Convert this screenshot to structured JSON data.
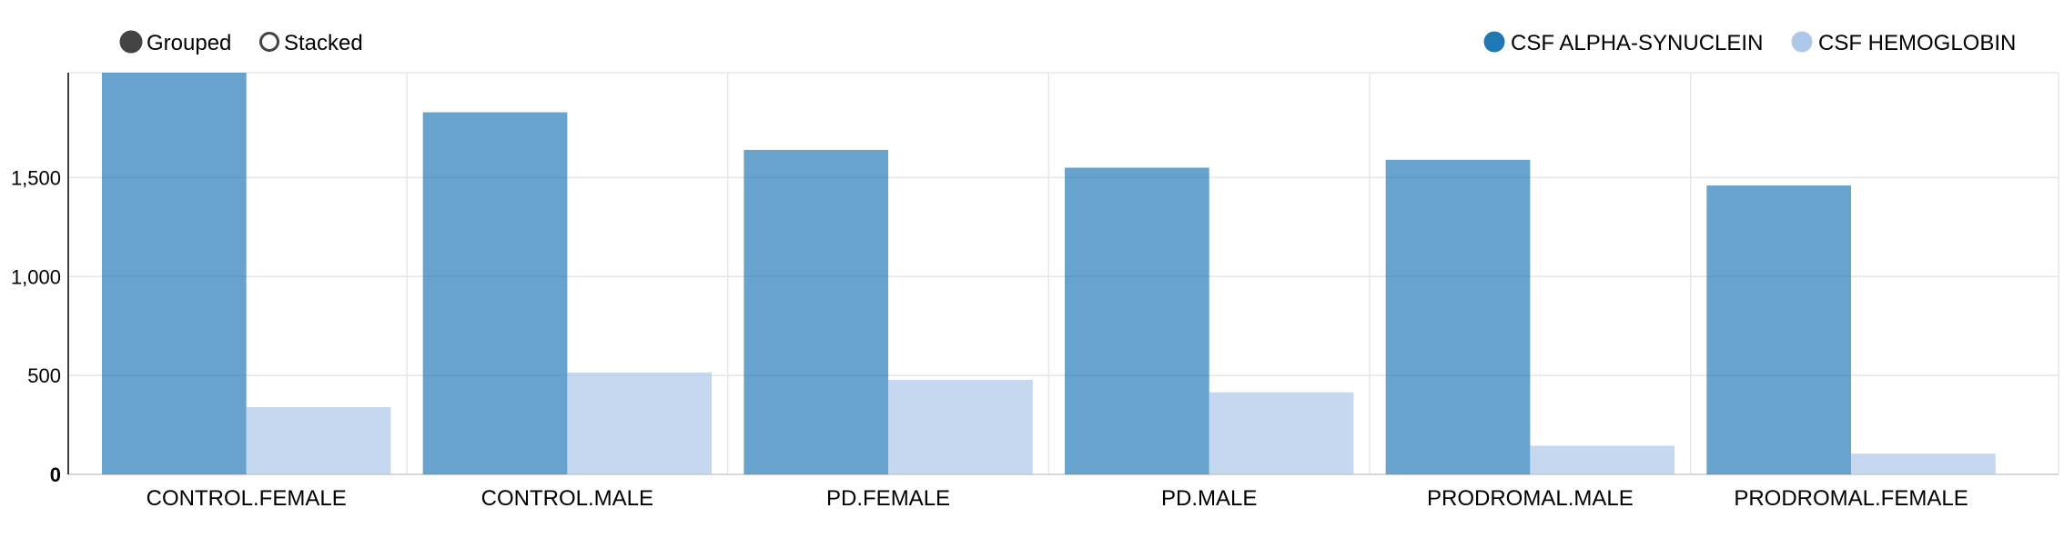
{
  "controls": {
    "grouped_label": "Grouped",
    "stacked_label": "Stacked",
    "selected": "Grouped"
  },
  "chart_data": {
    "type": "bar",
    "mode": "grouped",
    "categories": [
      "CONTROL.FEMALE",
      "CONTROL.MALE",
      "PD.FEMALE",
      "PD.MALE",
      "PRODROMAL.MALE",
      "PRODROMAL.FEMALE"
    ],
    "series": [
      {
        "name": "CSF ALPHA-SYNUCLEIN",
        "color": "#1f77b4",
        "values": [
          2030,
          1830,
          1640,
          1550,
          1590,
          1460
        ]
      },
      {
        "name": "CSF HEMOGLOBIN",
        "color": "#aec7e8",
        "values": [
          340,
          515,
          478,
          415,
          145,
          105
        ]
      }
    ],
    "ylim": [
      0,
      2030
    ],
    "yticks": [
      0,
      500,
      1000,
      1500
    ],
    "ytick_labels": [
      "0",
      "500",
      "1,000",
      "1,500"
    ],
    "xlabel": "",
    "ylabel": "",
    "grid": true,
    "legend_position": "top-right"
  }
}
